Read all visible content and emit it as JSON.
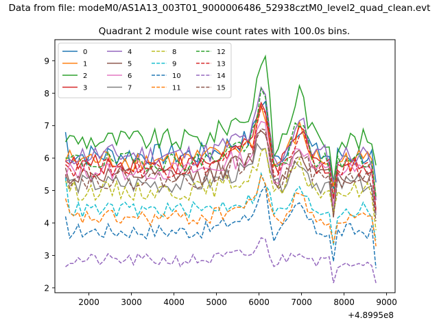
{
  "header": {
    "suptitle": "Data from file: modeM0/AS1A13_003T01_9000006486_52938cztM0_level2_quad_clean.evt",
    "title": "Quadrant 2 module wise count rates with 100.0s bins."
  },
  "chart_data": {
    "type": "line",
    "title": "Quadrant 2 module wise count rates with 100.0s bins.",
    "xlabel": "",
    "ylabel": "",
    "x_offset_label": "+4.8995e8",
    "xlim": [
      1200,
      9200
    ],
    "ylim": [
      1.85,
      9.65
    ],
    "x_ticks": [
      2000,
      3000,
      4000,
      5000,
      6000,
      7000,
      8000,
      9000
    ],
    "y_ticks": [
      2,
      3,
      4,
      5,
      6,
      7,
      8,
      9
    ],
    "x_start": 1450,
    "x_step": 100,
    "x_end": 8750,
    "grid": false,
    "legend": {
      "placement": "top-left",
      "columns": 4
    },
    "series": [
      {
        "name": "0",
        "color": "#1f77b4",
        "style": "solid",
        "base": 6.1,
        "noise": 0.35,
        "start": 6.8,
        "peak": 1.7,
        "drop": 0.0
      },
      {
        "name": "1",
        "color": "#ff7f0e",
        "style": "solid",
        "base": 5.95,
        "noise": 0.35,
        "start": 5.9,
        "peak": 1.6,
        "drop": 0.0
      },
      {
        "name": "2",
        "color": "#2ca02c",
        "style": "solid",
        "base": 6.55,
        "noise": 0.35,
        "start": 6.5,
        "peak": 2.7,
        "drop": 0.0
      },
      {
        "name": "3",
        "color": "#d62728",
        "style": "solid",
        "base": 5.8,
        "noise": 0.3,
        "start": 5.9,
        "peak": 2.0,
        "drop": 0.0
      },
      {
        "name": "4",
        "color": "#9467bd",
        "style": "solid",
        "base": 6.1,
        "noise": 0.35,
        "start": 5.9,
        "peak": 1.9,
        "drop": 0.0
      },
      {
        "name": "5",
        "color": "#8c564b",
        "style": "solid",
        "base": 5.45,
        "noise": 0.3,
        "start": 5.7,
        "peak": 1.6,
        "drop": 0.0
      },
      {
        "name": "6",
        "color": "#e377c2",
        "style": "solid",
        "base": 5.6,
        "noise": 0.3,
        "start": 5.4,
        "peak": 1.5,
        "drop": 0.0
      },
      {
        "name": "7",
        "color": "#7f7f7f",
        "style": "solid",
        "base": 5.2,
        "noise": 0.3,
        "start": 5.4,
        "peak": 1.4,
        "drop": 0.0
      },
      {
        "name": "8",
        "color": "#bcbd22",
        "style": "dashed",
        "base": 5.0,
        "noise": 0.3,
        "start": 5.3,
        "peak": 1.3,
        "drop": 0.0
      },
      {
        "name": "9",
        "color": "#17becf",
        "style": "dashed",
        "base": 4.4,
        "noise": 0.25,
        "start": 5.4,
        "peak": 1.0,
        "drop": 0.0
      },
      {
        "name": "10",
        "color": "#1f77b4",
        "style": "dashed",
        "base": 3.75,
        "noise": 0.25,
        "start": 4.2,
        "peak": 1.4,
        "drop": 0.0
      },
      {
        "name": "11",
        "color": "#ff7f0e",
        "style": "dashed",
        "base": 4.15,
        "noise": 0.25,
        "start": 4.75,
        "peak": 1.3,
        "drop": 0.0
      },
      {
        "name": "12",
        "color": "#2ca02c",
        "style": "dashed",
        "base": 5.9,
        "noise": 0.3,
        "start": 6.0,
        "peak": 2.0,
        "drop": 0.0
      },
      {
        "name": "13",
        "color": "#d62728",
        "style": "dashed",
        "base": 5.7,
        "noise": 0.3,
        "start": 5.8,
        "peak": 2.0,
        "drop": 0.0
      },
      {
        "name": "14",
        "color": "#9467bd",
        "style": "dashed",
        "base": 2.85,
        "noise": 0.2,
        "start": 2.65,
        "peak": 0.6,
        "drop": 0.0
      },
      {
        "name": "15",
        "color": "#8c564b",
        "style": "dashed",
        "base": 5.35,
        "noise": 0.3,
        "start": 5.5,
        "peak": 1.8,
        "drop": 0.0
      }
    ]
  }
}
